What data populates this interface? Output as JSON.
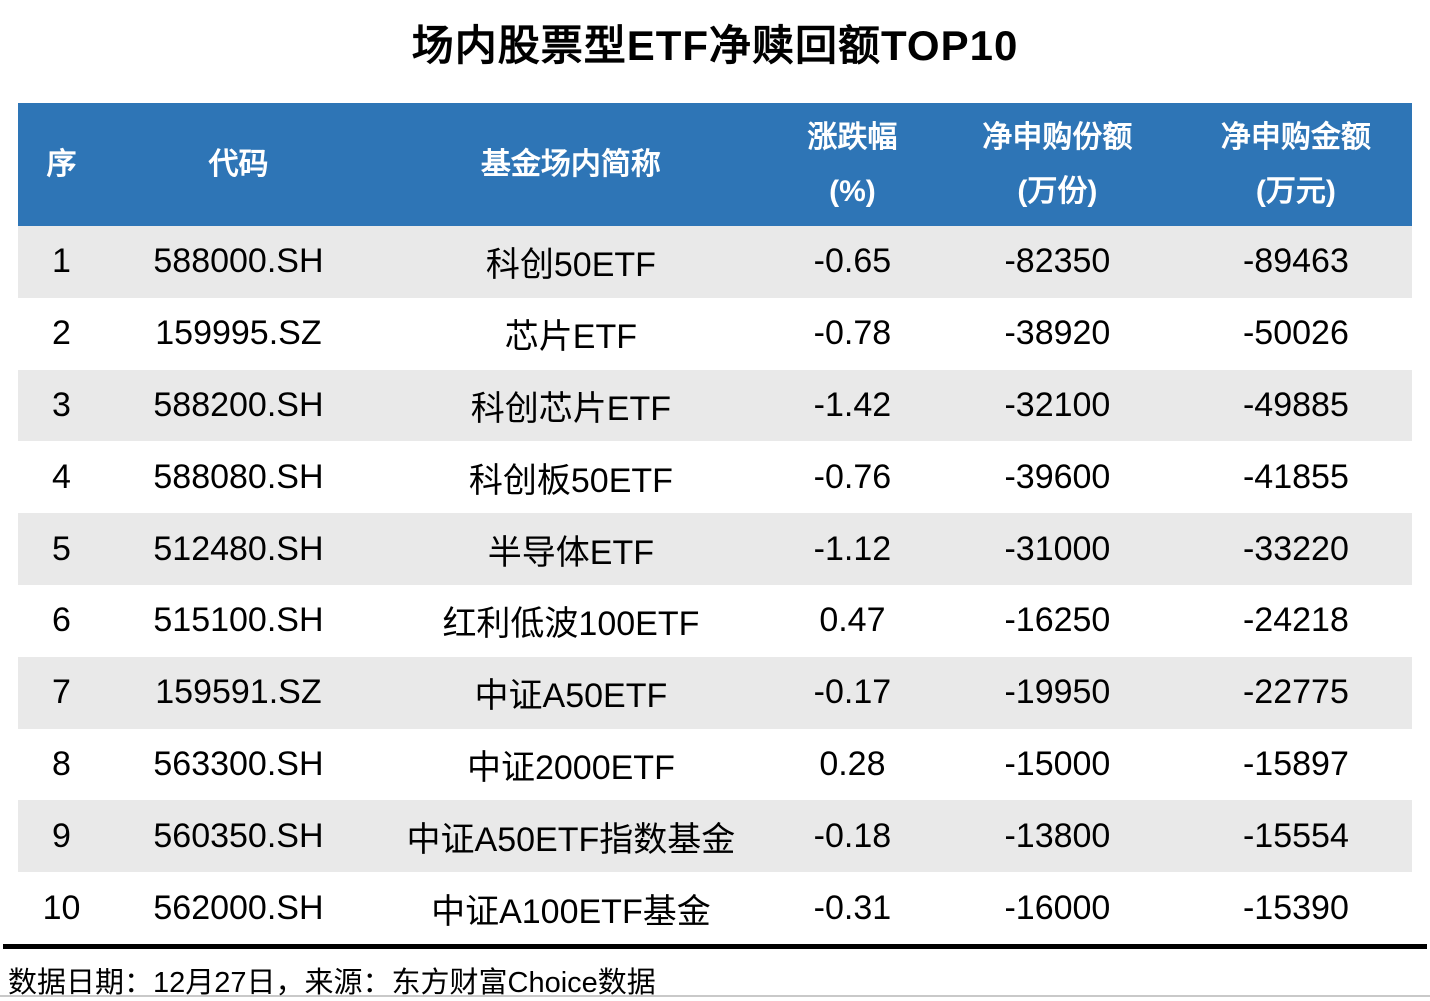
{
  "title": "场内股票型ETF净赎回额TOP10",
  "colors": {
    "header_bg": "#2E75B6",
    "header_text": "#FFFFFF",
    "stripe_bg": "#E9E9E9",
    "row_bg": "#FFFFFF",
    "text": "#000000",
    "divider": "#000000",
    "bottom_rule": "#C9C9C9"
  },
  "table": {
    "columns": [
      {
        "label": "序",
        "unit": ""
      },
      {
        "label": "代码",
        "unit": ""
      },
      {
        "label": "基金场内简称",
        "unit": ""
      },
      {
        "label": "涨跌幅",
        "unit": "(%)"
      },
      {
        "label": "净申购份额",
        "unit": "(万份)"
      },
      {
        "label": "净申购金额",
        "unit": "(万元)"
      }
    ],
    "rows": [
      {
        "no": "1",
        "code": "588000.SH",
        "name": "科创50ETF",
        "change": "-0.65",
        "shares": "-82350",
        "amount": "-89463"
      },
      {
        "no": "2",
        "code": "159995.SZ",
        "name": "芯片ETF",
        "change": "-0.78",
        "shares": "-38920",
        "amount": "-50026"
      },
      {
        "no": "3",
        "code": "588200.SH",
        "name": "科创芯片ETF",
        "change": "-1.42",
        "shares": "-32100",
        "amount": "-49885"
      },
      {
        "no": "4",
        "code": "588080.SH",
        "name": "科创板50ETF",
        "change": "-0.76",
        "shares": "-39600",
        "amount": "-41855"
      },
      {
        "no": "5",
        "code": "512480.SH",
        "name": "半导体ETF",
        "change": "-1.12",
        "shares": "-31000",
        "amount": "-33220"
      },
      {
        "no": "6",
        "code": "515100.SH",
        "name": "红利低波100ETF",
        "change": "0.47",
        "shares": "-16250",
        "amount": "-24218"
      },
      {
        "no": "7",
        "code": "159591.SZ",
        "name": "中证A50ETF",
        "change": "-0.17",
        "shares": "-19950",
        "amount": "-22775"
      },
      {
        "no": "8",
        "code": "563300.SH",
        "name": "中证2000ETF",
        "change": "0.28",
        "shares": "-15000",
        "amount": "-15897"
      },
      {
        "no": "9",
        "code": "560350.SH",
        "name": "中证A50ETF指数基金",
        "change": "-0.18",
        "shares": "-13800",
        "amount": "-15554"
      },
      {
        "no": "10",
        "code": "562000.SH",
        "name": "中证A100ETF基金",
        "change": "-0.31",
        "shares": "-16000",
        "amount": "-15390"
      }
    ]
  },
  "footer": {
    "text": "数据日期：12月27日，来源：东方财富Choice数据"
  },
  "chart_data": {
    "type": "table",
    "title": "场内股票型ETF净赎回额TOP10",
    "columns": [
      "序",
      "代码",
      "基金场内简称",
      "涨跌幅(%)",
      "净申购份额(万份)",
      "净申购金额(万元)"
    ],
    "rows": [
      [
        "1",
        "588000.SH",
        "科创50ETF",
        -0.65,
        -82350,
        -89463
      ],
      [
        "2",
        "159995.SZ",
        "芯片ETF",
        -0.78,
        -38920,
        -50026
      ],
      [
        "3",
        "588200.SH",
        "科创芯片ETF",
        -1.42,
        -32100,
        -49885
      ],
      [
        "4",
        "588080.SH",
        "科创板50ETF",
        -0.76,
        -39600,
        -41855
      ],
      [
        "5",
        "512480.SH",
        "半导体ETF",
        -1.12,
        -31000,
        -33220
      ],
      [
        "6",
        "515100.SH",
        "红利低波100ETF",
        0.47,
        -16250,
        -24218
      ],
      [
        "7",
        "159591.SZ",
        "中证A50ETF",
        -0.17,
        -19950,
        -22775
      ],
      [
        "8",
        "563300.SH",
        "中证2000ETF",
        0.28,
        -15000,
        -15897
      ],
      [
        "9",
        "560350.SH",
        "中证A50ETF指数基金",
        -0.18,
        -13800,
        -15554
      ],
      [
        "10",
        "562000.SH",
        "中证A100ETF基金",
        -0.31,
        -16000,
        -15390
      ]
    ],
    "data_date": "12月27日",
    "source": "东方财富Choice数据"
  }
}
